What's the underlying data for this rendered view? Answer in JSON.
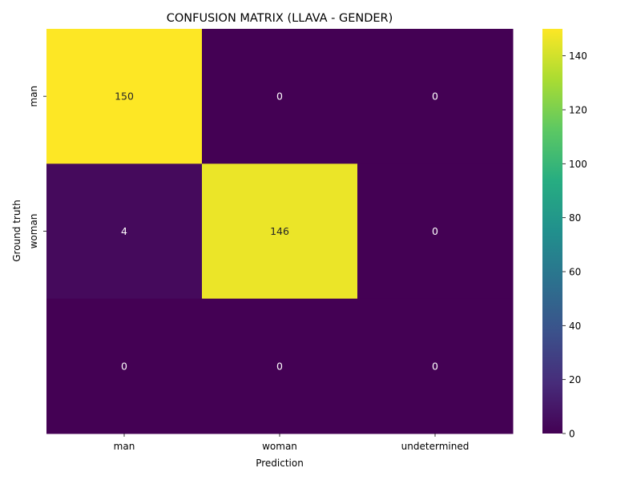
{
  "chart_data": {
    "type": "heatmap",
    "title": "CONFUSION MATRIX (LLAVA - GENDER)",
    "xlabel": "Prediction",
    "ylabel": "Ground truth",
    "x_categories": [
      "man",
      "woman",
      "undetermined"
    ],
    "y_categories": [
      "man",
      "woman",
      ""
    ],
    "values": [
      [
        150,
        0,
        0
      ],
      [
        4,
        146,
        0
      ],
      [
        0,
        0,
        0
      ]
    ],
    "colormap": "viridis",
    "vmin": 0,
    "vmax": 150,
    "colorbar_ticks": [
      0,
      20,
      40,
      60,
      80,
      100,
      120,
      140
    ],
    "annotation_colors": {
      "dark_cell": "#ffffff",
      "light_cell": "#262626"
    },
    "grid": false,
    "legend": "colorbar-right"
  }
}
